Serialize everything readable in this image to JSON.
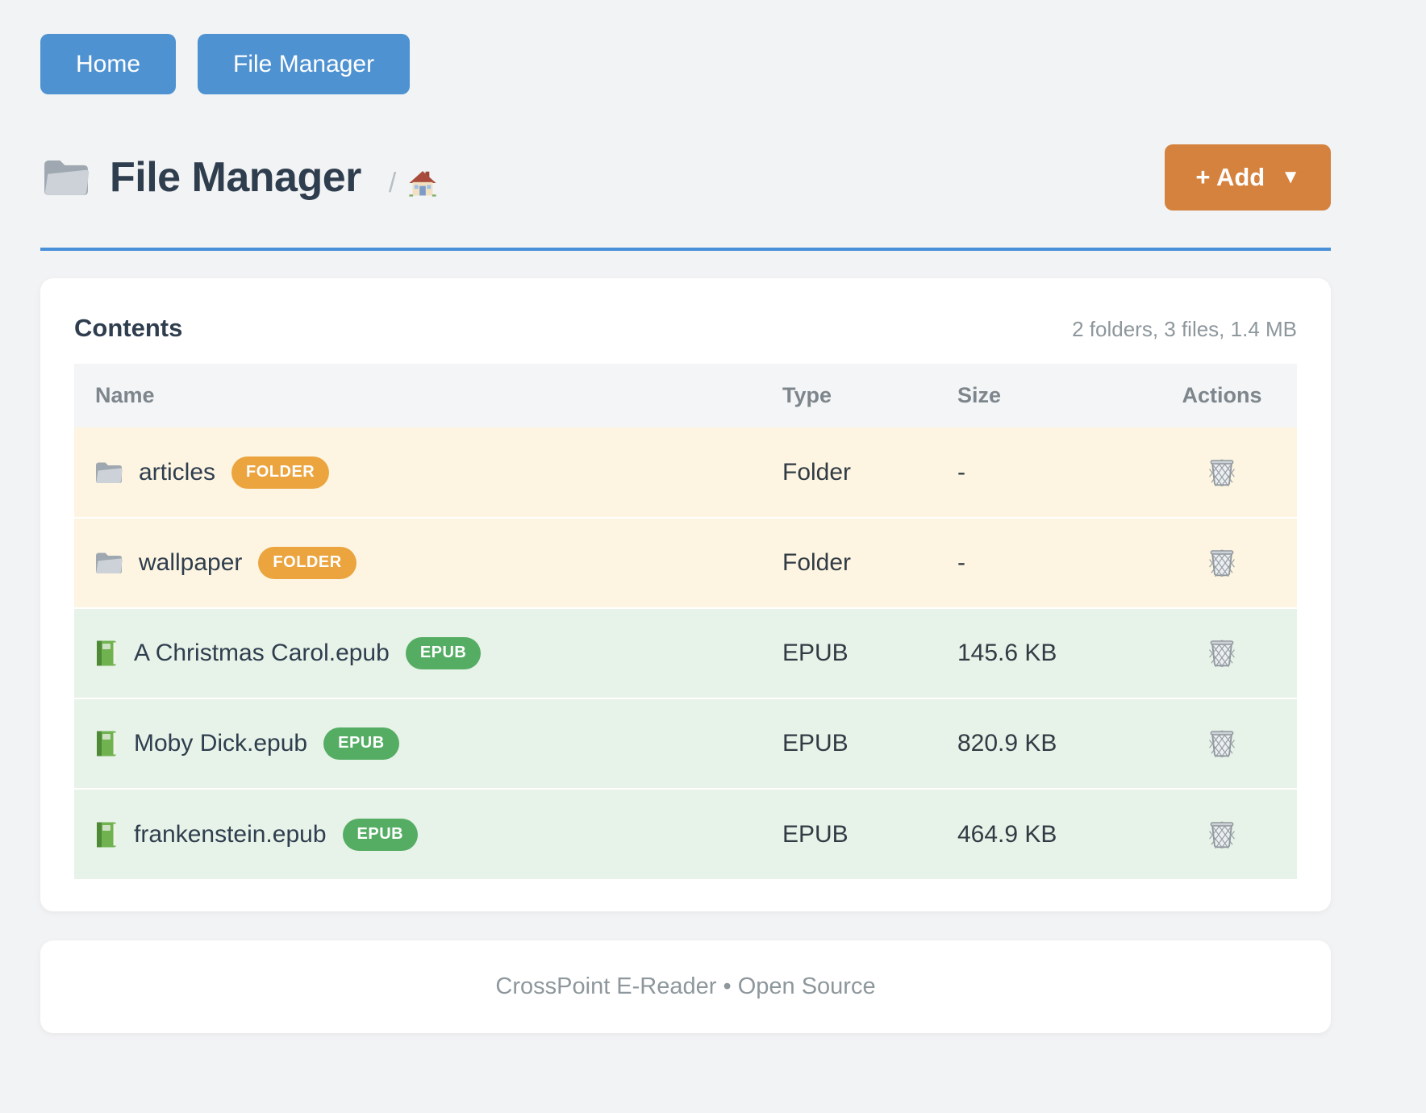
{
  "nav": {
    "home_label": "Home",
    "file_manager_label": "File Manager"
  },
  "header": {
    "title": "File Manager",
    "title_icon": "folder-icon",
    "breadcrumb_separator": "/",
    "breadcrumb_home_icon": "home-icon",
    "add_button_label": "+ Add",
    "add_button_caret": "▼"
  },
  "panel": {
    "title": "Contents",
    "summary": "2 folders, 3 files, 1.4 MB"
  },
  "table": {
    "columns": [
      "Name",
      "Type",
      "Size",
      "Actions"
    ],
    "action_icon": "trash-icon",
    "rows": [
      {
        "icon": "folder-icon",
        "name": "articles",
        "badge": "FOLDER",
        "kind": "folder",
        "type": "Folder",
        "size": "-"
      },
      {
        "icon": "folder-icon",
        "name": "wallpaper",
        "badge": "FOLDER",
        "kind": "folder",
        "type": "Folder",
        "size": "-"
      },
      {
        "icon": "book-icon",
        "name": "A Christmas Carol.epub",
        "badge": "EPUB",
        "kind": "epub",
        "type": "EPUB",
        "size": "145.6 KB"
      },
      {
        "icon": "book-icon",
        "name": "Moby Dick.epub",
        "badge": "EPUB",
        "kind": "epub",
        "type": "EPUB",
        "size": "820.9 KB"
      },
      {
        "icon": "book-icon",
        "name": "frankenstein.epub",
        "badge": "EPUB",
        "kind": "epub",
        "type": "EPUB",
        "size": "464.9 KB"
      }
    ]
  },
  "footer": {
    "text": "CrossPoint E-Reader • Open Source"
  },
  "colors": {
    "page_bg": "#f2f3f4",
    "nav_button_bg": "#4f92d1",
    "title_text": "#2f3e4e",
    "accent_rule": "#4a90d9",
    "add_button_bg": "#d5823e",
    "badge_folder_bg": "#eba43e",
    "badge_epub_bg": "#55ad64",
    "row_folder_bg": "#fdf5e1",
    "row_epub_bg": "#e7f2e8",
    "table_head_bg": "#f4f5f6",
    "table_head_text": "#7d868c",
    "muted_text": "#8d979c",
    "cell_text": "#313b44"
  }
}
